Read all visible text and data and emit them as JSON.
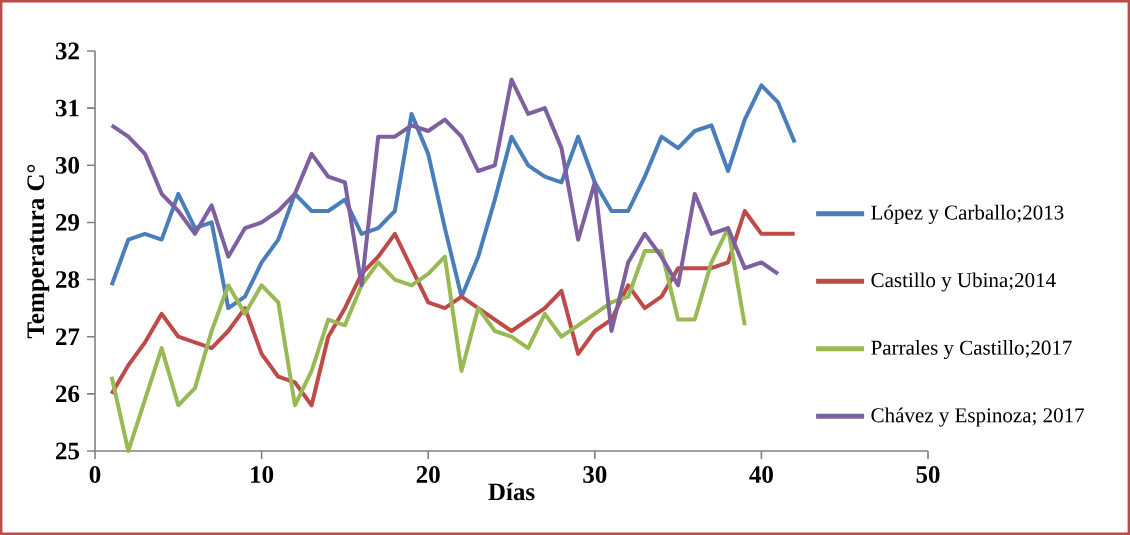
{
  "chart_data": {
    "type": "line",
    "xlabel": "Días",
    "ylabel": "Temperatura C°",
    "xlim": [
      0,
      50
    ],
    "ylim": [
      25,
      32
    ],
    "xticks": [
      0,
      10,
      20,
      30,
      40,
      50
    ],
    "yticks": [
      25,
      26,
      27,
      28,
      29,
      30,
      31,
      32
    ],
    "grid": false,
    "legend": "right",
    "marker": "none",
    "line_style": "solid",
    "series": [
      {
        "name": "López y Carballo;2013",
        "color": "#4a7ebb",
        "x": [
          1,
          2,
          3,
          4,
          5,
          6,
          7,
          8,
          9,
          10,
          11,
          12,
          13,
          14,
          15,
          16,
          17,
          18,
          19,
          20,
          21,
          22,
          23,
          24,
          25,
          26,
          27,
          28,
          29,
          30,
          31,
          32,
          33,
          34,
          35,
          36,
          37,
          38,
          39,
          40,
          41,
          42
        ],
        "values": [
          27.9,
          28.7,
          28.8,
          28.7,
          29.5,
          28.9,
          29.0,
          27.5,
          27.7,
          28.3,
          28.7,
          29.5,
          29.2,
          29.2,
          29.4,
          28.8,
          28.9,
          29.2,
          30.9,
          30.2,
          28.9,
          27.7,
          28.4,
          29.4,
          30.5,
          30.0,
          29.8,
          29.7,
          30.5,
          29.7,
          29.2,
          29.2,
          29.8,
          30.5,
          30.3,
          30.6,
          30.7,
          29.9,
          30.8,
          31.4,
          31.1,
          30.4
        ]
      },
      {
        "name": "Castillo y Ubina;2014",
        "color": "#be4b48",
        "x": [
          1,
          2,
          3,
          4,
          5,
          6,
          7,
          8,
          9,
          10,
          11,
          12,
          13,
          14,
          15,
          16,
          17,
          18,
          19,
          20,
          21,
          22,
          23,
          24,
          25,
          26,
          27,
          28,
          29,
          30,
          31,
          32,
          33,
          34,
          35,
          36,
          37,
          38,
          39,
          40,
          41,
          42
        ],
        "values": [
          26.0,
          26.5,
          26.9,
          27.4,
          27.0,
          26.9,
          26.8,
          27.1,
          27.5,
          26.7,
          26.3,
          26.2,
          25.8,
          27.0,
          27.5,
          28.1,
          28.4,
          28.8,
          28.2,
          27.6,
          27.5,
          27.7,
          27.5,
          27.3,
          27.1,
          27.3,
          27.5,
          27.8,
          26.7,
          27.1,
          27.3,
          27.9,
          27.5,
          27.7,
          28.2,
          28.2,
          28.2,
          28.3,
          29.2,
          28.8,
          28.8,
          28.8
        ]
      },
      {
        "name": "Parrales y Castillo;2017",
        "color": "#98b954",
        "x": [
          1,
          2,
          3,
          4,
          5,
          6,
          7,
          8,
          9,
          10,
          11,
          12,
          13,
          14,
          15,
          16,
          17,
          18,
          19,
          20,
          21,
          22,
          23,
          24,
          25,
          26,
          27,
          28,
          29,
          30,
          31,
          32,
          33,
          34,
          35,
          36,
          37,
          38,
          39
        ],
        "values": [
          26.3,
          25.0,
          25.9,
          26.8,
          25.8,
          26.1,
          27.1,
          27.9,
          27.4,
          27.9,
          27.6,
          25.8,
          26.4,
          27.3,
          27.2,
          27.9,
          28.3,
          28.0,
          27.9,
          28.1,
          28.4,
          26.4,
          27.5,
          27.1,
          27.0,
          26.8,
          27.4,
          27.0,
          27.2,
          27.4,
          27.6,
          27.7,
          28.5,
          28.5,
          27.3,
          27.3,
          28.3,
          28.9,
          27.2
        ]
      },
      {
        "name": "Chávez y Espinoza; 2017",
        "color": "#7d60a0",
        "x": [
          1,
          2,
          3,
          4,
          5,
          6,
          7,
          8,
          9,
          10,
          11,
          12,
          13,
          14,
          15,
          16,
          17,
          18,
          19,
          20,
          21,
          22,
          23,
          24,
          25,
          26,
          27,
          28,
          29,
          30,
          31,
          32,
          33,
          34,
          35,
          36,
          37,
          38,
          39,
          40,
          41
        ],
        "values": [
          30.7,
          30.5,
          30.2,
          29.5,
          29.2,
          28.8,
          29.3,
          28.4,
          28.9,
          29.0,
          29.2,
          29.5,
          30.2,
          29.8,
          29.7,
          27.9,
          30.5,
          30.5,
          30.7,
          30.6,
          30.8,
          30.5,
          29.9,
          30.0,
          31.5,
          30.9,
          31.0,
          30.3,
          28.7,
          29.7,
          27.1,
          28.3,
          28.8,
          28.4,
          27.9,
          29.5,
          28.8,
          28.9,
          28.2,
          28.3,
          28.1
        ]
      }
    ]
  }
}
